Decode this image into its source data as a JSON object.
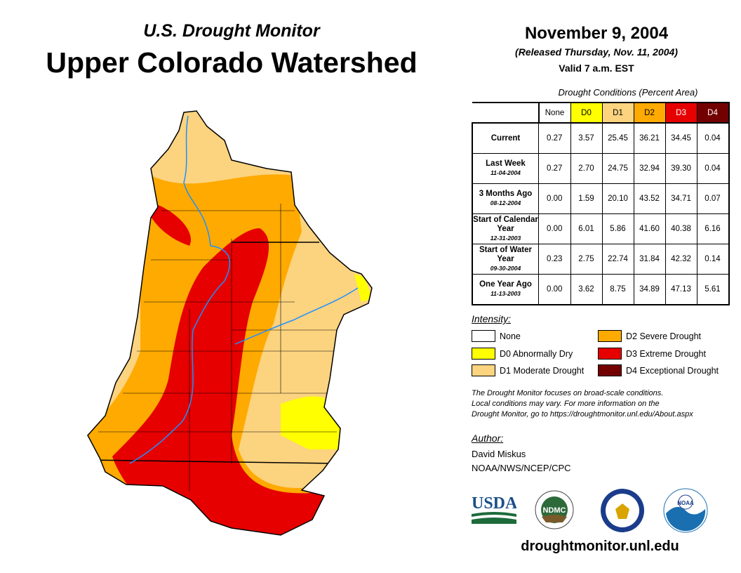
{
  "header": {
    "subtitle": "U.S. Drought Monitor",
    "title": "Upper Colorado Watershed",
    "date": "November 9, 2004",
    "released": "(Released Thursday, Nov. 11, 2004)",
    "valid": "Valid 7 a.m. EST"
  },
  "table": {
    "caption": "Drought Conditions (Percent Area)",
    "columns": [
      "None",
      "D0",
      "D1",
      "D2",
      "D3",
      "D4"
    ],
    "column_colors": [
      "#ffffff",
      "#ffff00",
      "#fcd37f",
      "#ffaa00",
      "#e60000",
      "#730000"
    ],
    "rows": [
      {
        "label": "Current",
        "date": "",
        "values": [
          "0.27",
          "3.57",
          "25.45",
          "36.21",
          "34.45",
          "0.04"
        ]
      },
      {
        "label": "Last Week",
        "date": "11-04-2004",
        "values": [
          "0.27",
          "2.70",
          "24.75",
          "32.94",
          "39.30",
          "0.04"
        ]
      },
      {
        "label": "3 Months Ago",
        "date": "08-12-2004",
        "values": [
          "0.00",
          "1.59",
          "20.10",
          "43.52",
          "34.71",
          "0.07"
        ]
      },
      {
        "label": "Start of Calendar Year",
        "date": "12-31-2003",
        "values": [
          "0.00",
          "6.01",
          "5.86",
          "41.60",
          "40.38",
          "6.16"
        ]
      },
      {
        "label": "Start of Water Year",
        "date": "09-30-2004",
        "values": [
          "0.23",
          "2.75",
          "22.74",
          "31.84",
          "42.32",
          "0.14"
        ]
      },
      {
        "label": "One Year Ago",
        "date": "11-13-2003",
        "values": [
          "0.00",
          "3.62",
          "8.75",
          "34.89",
          "47.13",
          "5.61"
        ]
      }
    ]
  },
  "legend": {
    "title": "Intensity:",
    "items": [
      {
        "label": "None",
        "color": "#ffffff"
      },
      {
        "label": "D0 Abnormally Dry",
        "color": "#ffff00"
      },
      {
        "label": "D1 Moderate Drought",
        "color": "#fcd37f"
      },
      {
        "label": "D2 Severe Drought",
        "color": "#ffaa00"
      },
      {
        "label": "D3 Extreme Drought",
        "color": "#e60000"
      },
      {
        "label": "D4 Exceptional Drought",
        "color": "#730000"
      }
    ]
  },
  "note": {
    "line1": "The Drought Monitor focuses on broad-scale conditions.",
    "line2": "Local conditions may vary. For more information on the",
    "line3": "Drought Monitor, go to https://droughtmonitor.unl.edu/About.aspx"
  },
  "author": {
    "title": "Author:",
    "name": "David Miskus",
    "org": "NOAA/NWS/NCEP/CPC"
  },
  "logos": {
    "usda": "USDA",
    "ndmc": "NDMC",
    "noaa": "NOAA"
  },
  "footer": {
    "url": "droughtmonitor.unl.edu"
  }
}
